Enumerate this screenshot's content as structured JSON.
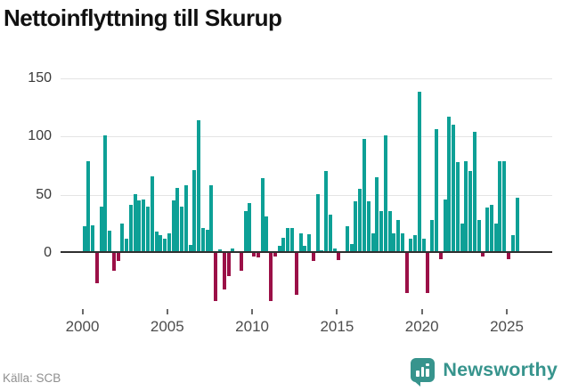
{
  "title": "Nettoinflyttning till Skurup",
  "source": "Källa: SCB",
  "brand": {
    "name": "Newsworthy",
    "color": "#37948d",
    "icon": "bar-chart-speech-bubble"
  },
  "colors": {
    "positive_bar": "#0da096",
    "negative_bar": "#9b1047",
    "gridline": "#e4e4e4",
    "zero_axis": "#2f2f2f",
    "title_text": "#111111",
    "axis_text": "#4d4d4d",
    "source_text": "#8f8f8f"
  },
  "chart_data": {
    "type": "bar",
    "title": "Nettoinflyttning till Skurup",
    "xlabel": "",
    "ylabel": "",
    "frequency": "quarterly",
    "start_period": "2000Q1",
    "end_period": "2025Q3",
    "x_tick_labels": [
      "2000",
      "2005",
      "2010",
      "2015",
      "2020",
      "2025"
    ],
    "y_ticks": [
      0,
      50,
      100,
      150
    ],
    "ylim": [
      -45,
      155
    ],
    "grid": "horizontal",
    "legend": "none",
    "series": [
      {
        "name": "Nettoinflyttning",
        "values": [
          23,
          79,
          24,
          -26,
          40,
          101,
          19,
          -15,
          -7,
          25,
          12,
          41,
          50,
          45,
          46,
          40,
          66,
          18,
          15,
          12,
          17,
          45,
          56,
          40,
          58,
          7,
          71,
          114,
          21,
          20,
          58,
          -41,
          3,
          -31,
          -20,
          4,
          0,
          -15,
          36,
          43,
          -3,
          -4,
          64,
          31,
          -41,
          -3,
          6,
          13,
          21,
          21,
          -36,
          17,
          6,
          16,
          -7,
          50,
          2,
          70,
          33,
          4,
          -6,
          0,
          23,
          8,
          44,
          55,
          98,
          44,
          17,
          65,
          36,
          101,
          36,
          17,
          28,
          17,
          -34,
          12,
          15,
          138,
          12,
          -34,
          28,
          106,
          -5,
          46,
          117,
          110,
          78,
          25,
          79,
          70,
          104,
          28,
          -3,
          39,
          41,
          25,
          79,
          79,
          -5,
          15,
          47
        ]
      }
    ]
  }
}
